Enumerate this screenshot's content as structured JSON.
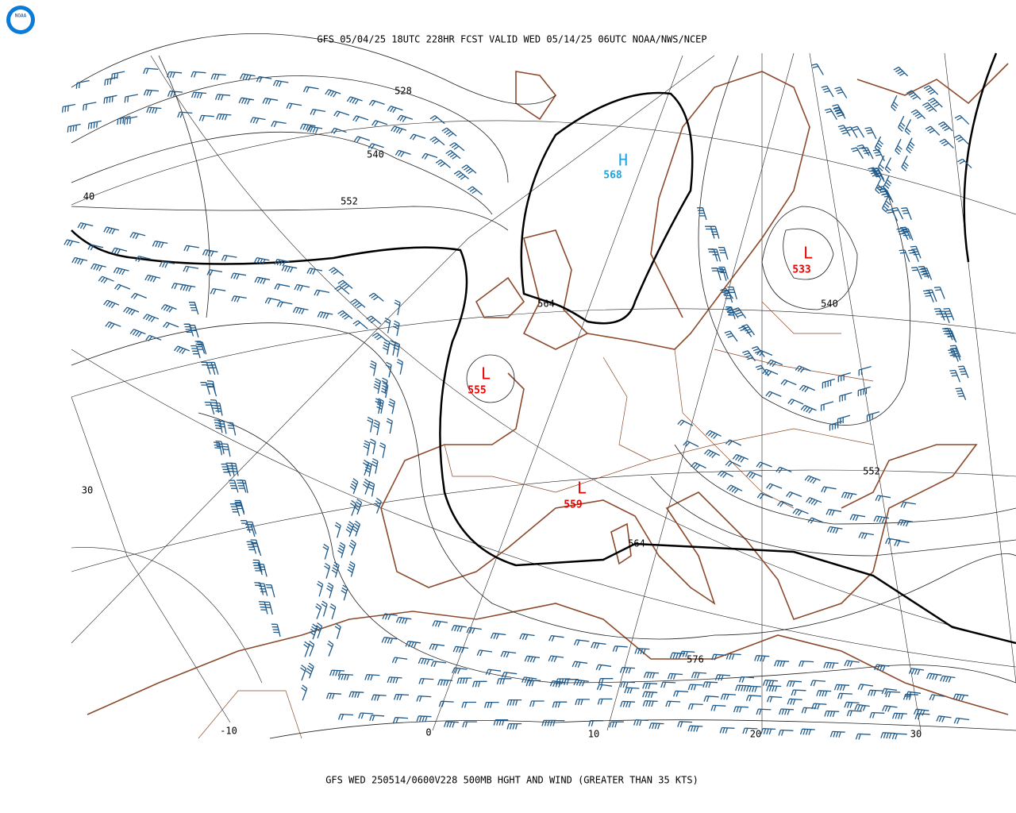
{
  "header": {
    "logo": "NOAA",
    "title": "GFS 05/04/25 18UTC 228HR FCST VALID WED 05/14/25 06UTC NOAA/NWS/NCEP"
  },
  "map": {
    "contour_labels": [
      "528",
      "540",
      "552",
      "564",
      "564",
      "540",
      "552",
      "576"
    ],
    "centers": [
      {
        "letter": "H",
        "value": "568"
      },
      {
        "letter": "L",
        "value": "555"
      },
      {
        "letter": "L",
        "value": "559"
      },
      {
        "letter": "L",
        "value": "533"
      }
    ],
    "lat_labels": [
      "40",
      "30"
    ],
    "lon_labels": [
      "-10",
      "0",
      "10",
      "20",
      "30"
    ]
  },
  "footer": {
    "caption": "GFS WED 250514/0600V228 500MB HGHT AND WIND (GREATER THAN 35 KTS)"
  }
}
